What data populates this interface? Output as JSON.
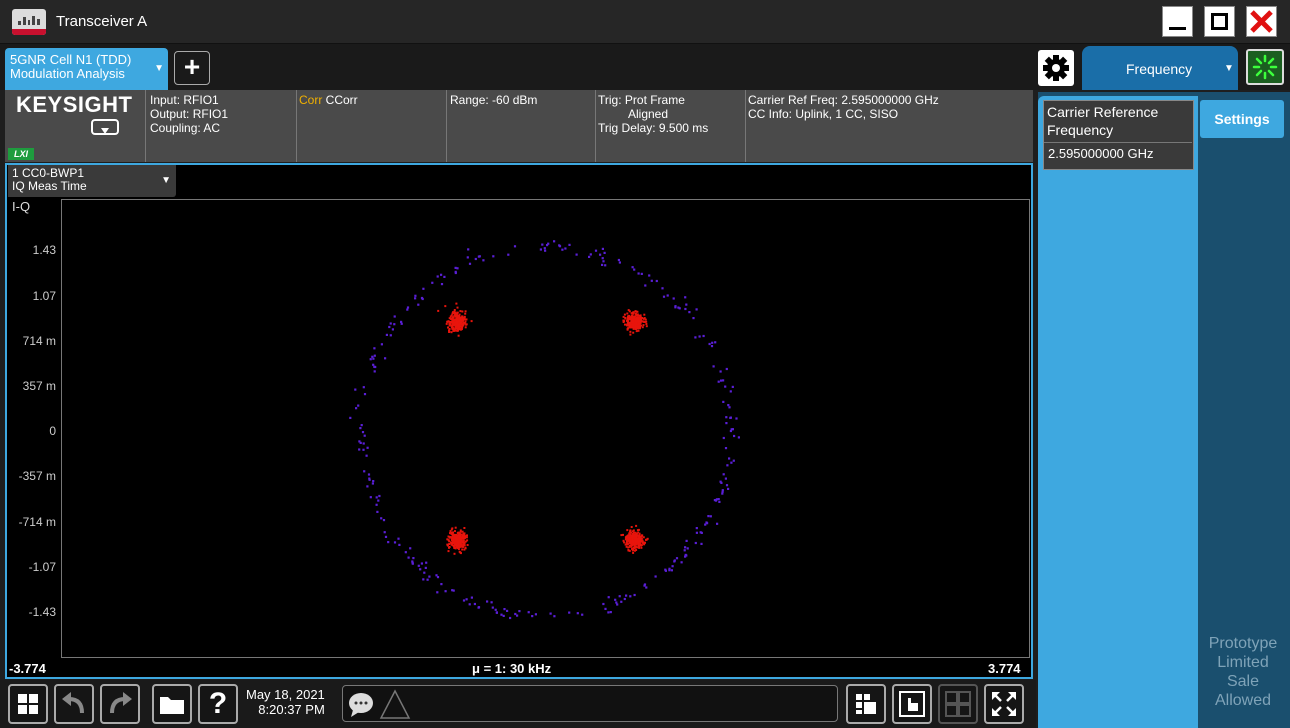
{
  "window": {
    "title": "Transceiver A"
  },
  "measurement_tab": {
    "line1": "5GNR Cell N1 (TDD)",
    "line2": "Modulation Analysis"
  },
  "menu_tab": {
    "label": "Frequency"
  },
  "logo": "KEYSIGHT",
  "lxi": "LXI",
  "info": {
    "input": "Input: RFIO1",
    "output": "Output: RFIO1",
    "coupling": "Coupling: AC",
    "corr_prefix": "Corr",
    "corr_value": " CCorr",
    "range": "Range: -60 dBm",
    "trig1": "Trig: Prot Frame",
    "trig2": "Aligned",
    "trig3": "Trig Delay: 9.500 ms",
    "carrier": "Carrier Ref Freq: 2.595000000 GHz",
    "cc_info": "CC Info: Uplink, 1 CC, SISO"
  },
  "trace_selector": {
    "line1": "1 CC0-BWP1",
    "line2": "IQ Meas Time"
  },
  "chart_data": {
    "type": "scatter",
    "title": "I-Q",
    "ytick_labels": [
      "1.43",
      "1.07",
      "714 m",
      "357 m",
      "0",
      "-357 m",
      "-714 m",
      "-1.07",
      "-1.43"
    ],
    "x_min_label": "-3.774",
    "x_max_label": "3.774",
    "x_center_label": "μ = 1: 30 kHz",
    "constellation_points": [
      {
        "i": -0.71,
        "q": 0.71,
        "color": "#e8140c"
      },
      {
        "i": 0.71,
        "q": 0.71,
        "color": "#e8140c"
      },
      {
        "i": -0.71,
        "q": -0.71,
        "color": "#e8140c"
      },
      {
        "i": 0.71,
        "q": -0.71,
        "color": "#e8140c"
      }
    ],
    "transition_ring": {
      "radius": 1.47,
      "color": "#5a1fd6"
    }
  },
  "datetime": {
    "date": "May 18, 2021",
    "time": "8:20:37 PM"
  },
  "right_panel": {
    "carrier_ref_label": "Carrier Reference Frequency",
    "carrier_ref_value": "2.595000000 GHz",
    "settings_tab": "Settings",
    "watermark": [
      "Prototype",
      "Limited",
      "Sale",
      "Allowed"
    ]
  }
}
